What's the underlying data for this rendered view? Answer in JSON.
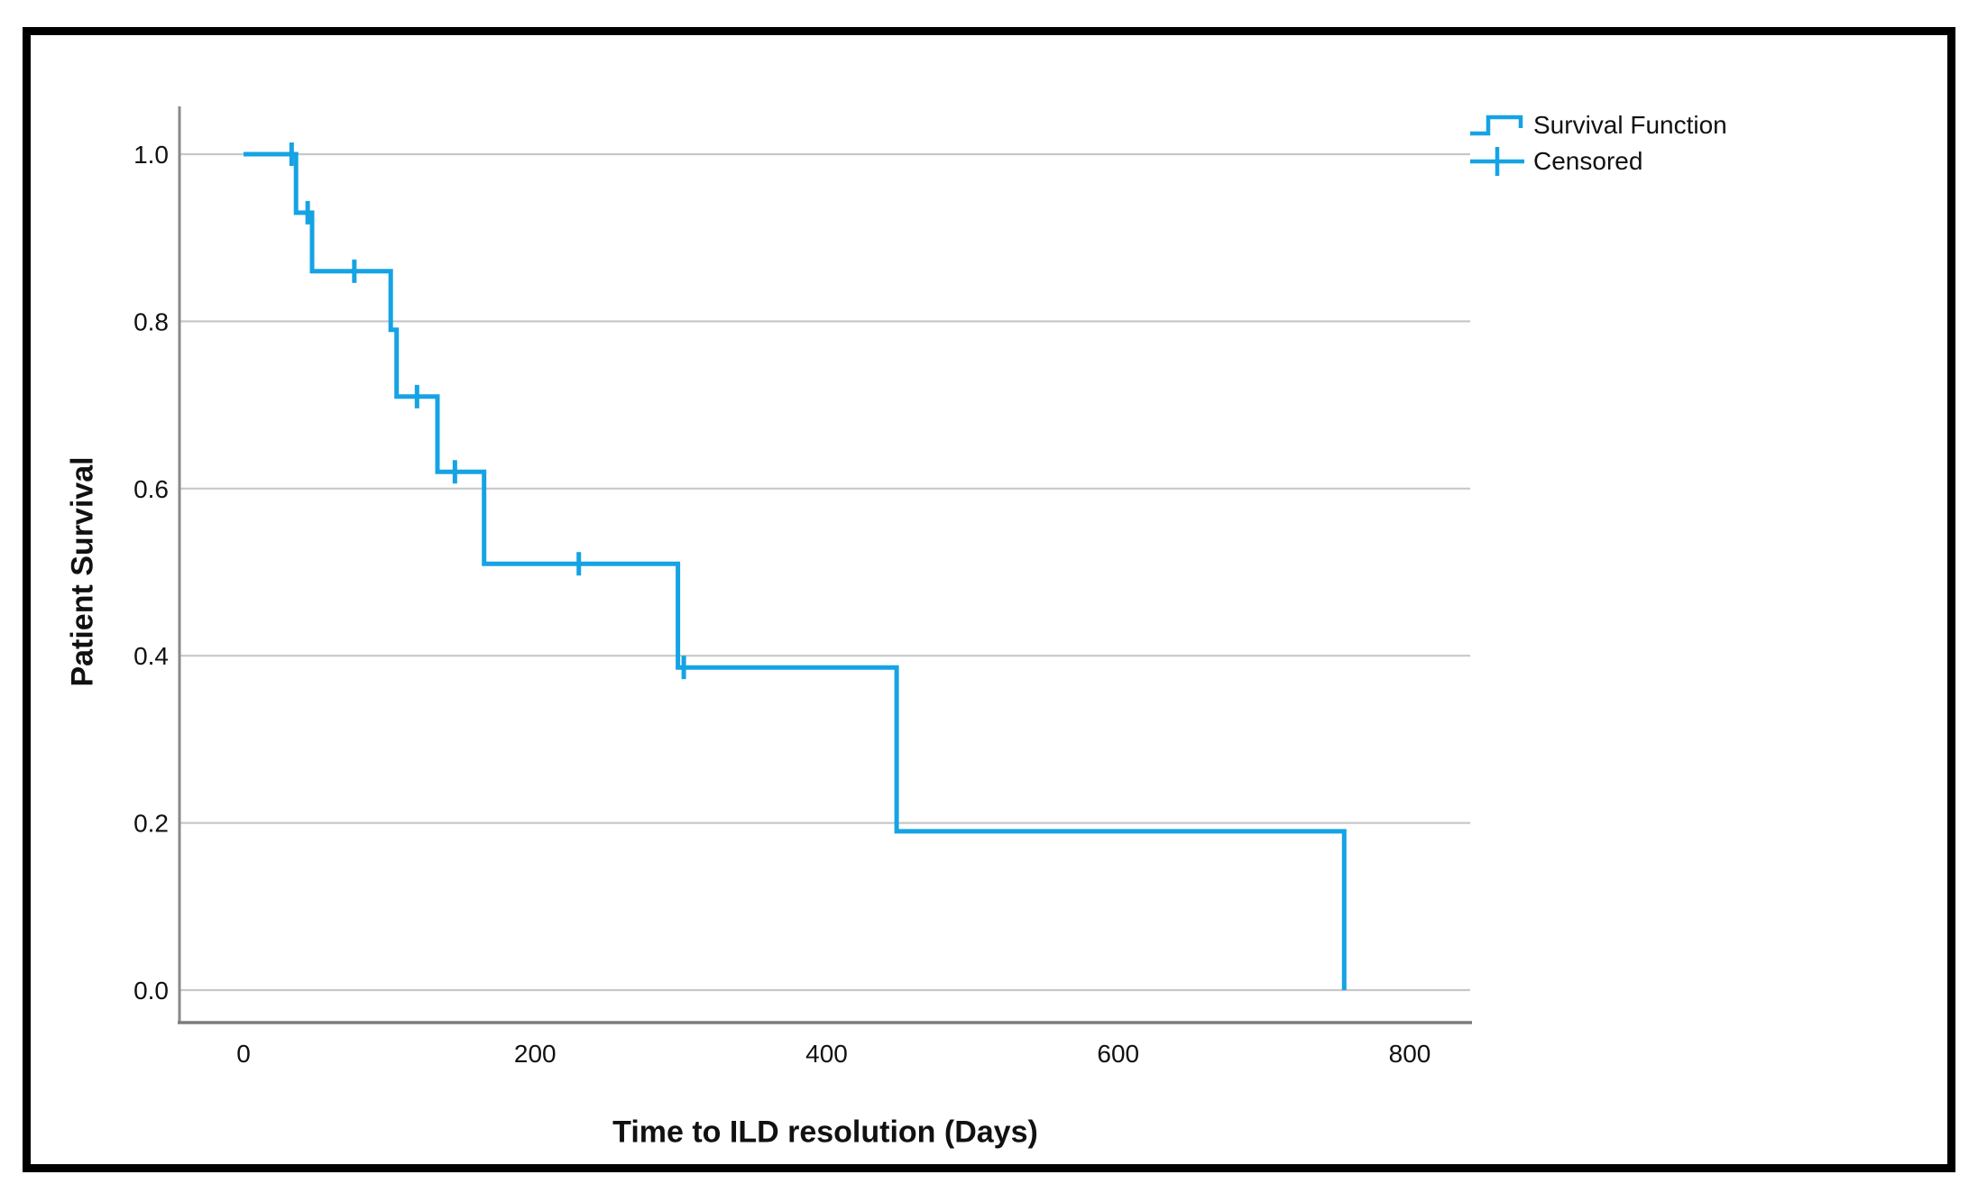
{
  "frame": {
    "background": "#ffffff",
    "border_color": "#000000"
  },
  "legend": {
    "survival_label": "Survival Function",
    "censored_label": "Censored"
  },
  "chart_data": {
    "type": "line",
    "subtype": "kaplan-meier-step",
    "title": "",
    "xlabel": "Time to ILD resolution (Days)",
    "ylabel": "Patient Survival",
    "xlim": [
      -44,
      842
    ],
    "ylim": [
      -0.039,
      1.057
    ],
    "grid": "horizontal",
    "legend_position": "top-right",
    "legend_entries": [
      "Survival Function",
      "Censored"
    ],
    "x_ticks": [
      {
        "label": "0",
        "value": 0
      },
      {
        "label": "200",
        "value": 200
      },
      {
        "label": "400",
        "value": 400
      },
      {
        "label": "600",
        "value": 600
      },
      {
        "label": "800",
        "value": 800
      }
    ],
    "y_ticks": [
      {
        "label": "1.0",
        "value": 1.0
      },
      {
        "label": "0.8",
        "value": 0.8
      },
      {
        "label": "0.6",
        "value": 0.6
      },
      {
        "label": "0.4",
        "value": 0.4
      },
      {
        "label": "0.2",
        "value": 0.2
      },
      {
        "label": "0.0",
        "value": 0.0
      }
    ],
    "series": [
      {
        "name": "Survival Function",
        "step_points": [
          [
            0,
            1.0
          ],
          [
            36,
            1.0
          ],
          [
            36,
            0.93
          ],
          [
            47,
            0.93
          ],
          [
            47,
            0.86
          ],
          [
            101,
            0.86
          ],
          [
            101,
            0.79
          ],
          [
            105,
            0.79
          ],
          [
            105,
            0.71
          ],
          [
            133,
            0.71
          ],
          [
            133,
            0.62
          ],
          [
            165,
            0.62
          ],
          [
            165,
            0.51
          ],
          [
            298,
            0.51
          ],
          [
            298,
            0.386
          ],
          [
            448,
            0.386
          ],
          [
            448,
            0.19
          ],
          [
            755,
            0.19
          ],
          [
            755,
            0.0
          ]
        ]
      }
    ],
    "censored_points": [
      [
        33,
        1.0
      ],
      [
        44,
        0.93
      ],
      [
        76,
        0.86
      ],
      [
        119,
        0.71
      ],
      [
        145,
        0.62
      ],
      [
        230,
        0.51
      ],
      [
        302,
        0.386
      ]
    ],
    "colors": {
      "accent": "#15A3E4",
      "gridline": "#C8C8C8",
      "axis_line": "#8A8A8A",
      "text": "#111111"
    }
  }
}
